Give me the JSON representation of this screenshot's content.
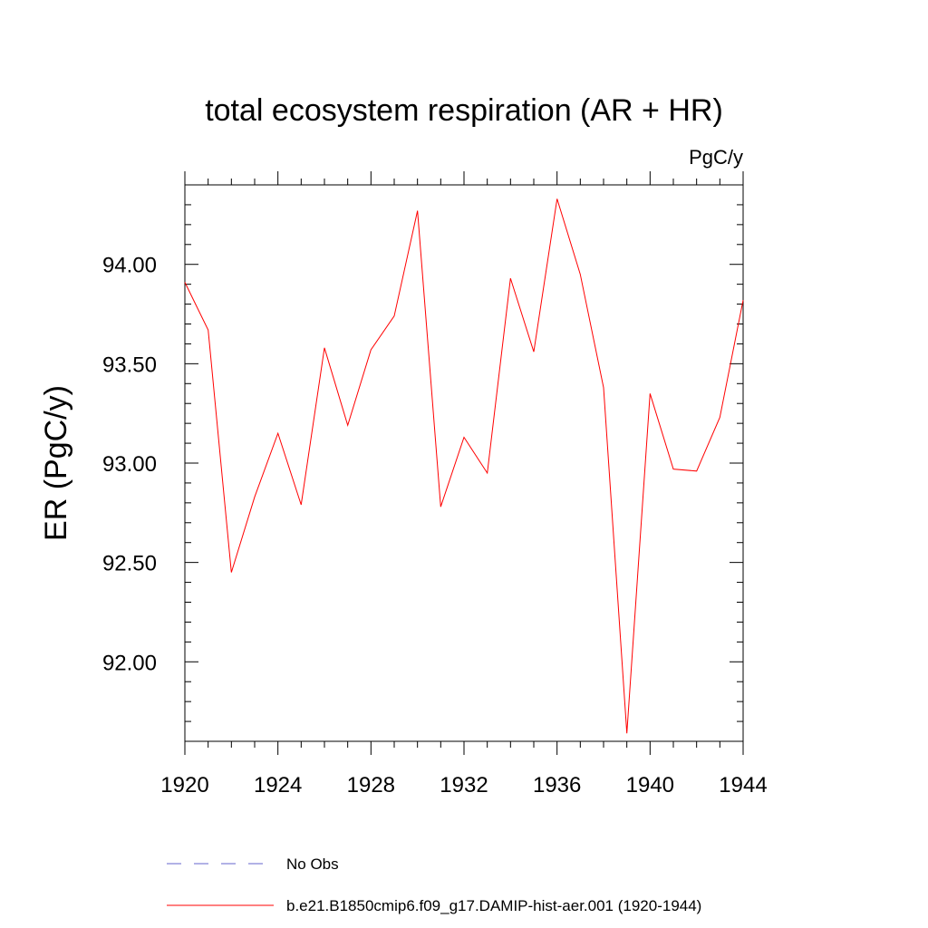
{
  "chart_data": {
    "type": "line",
    "title": "total ecosystem respiration (AR + HR)",
    "units": "PgC/y",
    "ylabel": "ER  (PgC/y)",
    "xlabel": "",
    "xlim": [
      1920,
      1944
    ],
    "ylim": [
      91.6,
      94.4
    ],
    "x_ticks": [
      1920,
      1924,
      1928,
      1932,
      1936,
      1940,
      1944
    ],
    "x_tick_labels": [
      "1920",
      "1924",
      "1928",
      "1932",
      "1936",
      "1940",
      "1944"
    ],
    "y_ticks": [
      92.0,
      92.5,
      93.0,
      93.5,
      94.0
    ],
    "y_tick_labels": [
      "92.00",
      "92.50",
      "93.00",
      "93.50",
      "94.00"
    ],
    "grid": false,
    "legend_position": "bottom",
    "series": [
      {
        "name": "b.e21.B1850cmip6.f09_g17.DAMIP-hist-aer.001 (1920-1944)",
        "color": "#ff0000",
        "line_style": "solid",
        "x": [
          1920,
          1921,
          1922,
          1923,
          1924,
          1925,
          1926,
          1927,
          1928,
          1929,
          1930,
          1931,
          1932,
          1933,
          1934,
          1935,
          1936,
          1937,
          1938,
          1939,
          1940,
          1941,
          1942,
          1943,
          1944
        ],
        "values": [
          93.91,
          93.67,
          92.45,
          92.83,
          93.15,
          92.79,
          93.58,
          93.19,
          93.57,
          93.74,
          94.27,
          92.78,
          93.13,
          92.95,
          93.93,
          93.56,
          94.33,
          93.95,
          93.38,
          91.64,
          93.35,
          92.97,
          92.96,
          93.23,
          93.82
        ]
      }
    ],
    "legend": [
      {
        "label": "No Obs",
        "color": "#6666cc",
        "line_style": "dashed"
      },
      {
        "label": "b.e21.B1850cmip6.f09_g17.DAMIP-hist-aer.001 (1920-1944)",
        "color": "#ff0000",
        "line_style": "solid"
      }
    ]
  }
}
